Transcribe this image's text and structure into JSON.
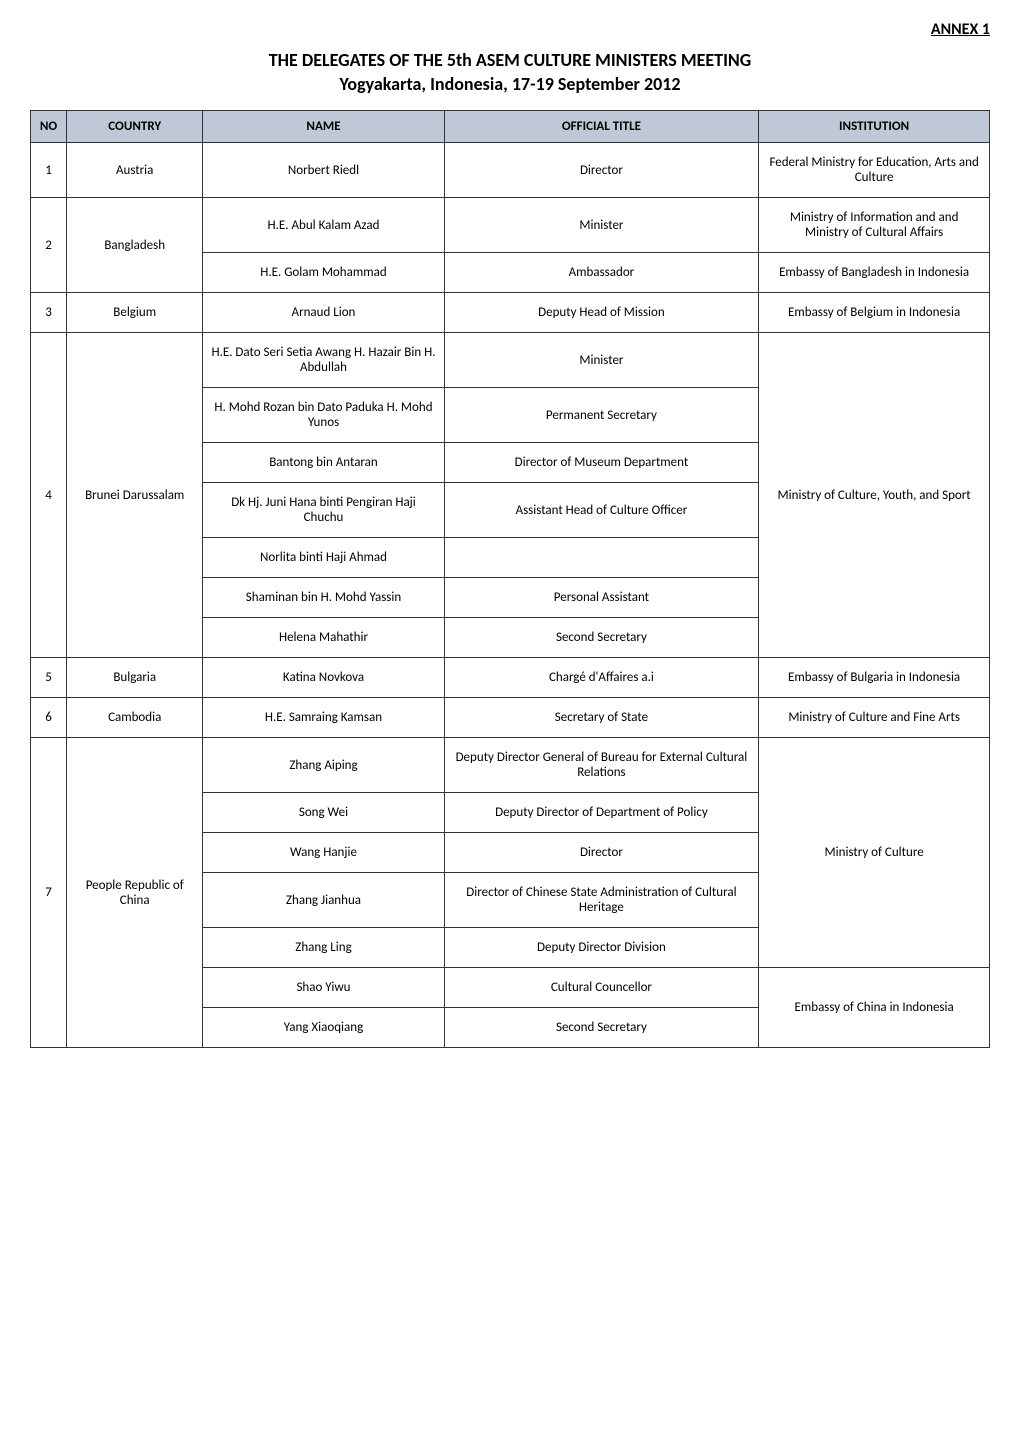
{
  "header": {
    "annex": "ANNEX 1",
    "title_main": "THE DELEGATES OF THE 5th ASEM CULTURE MINISTERS MEETING",
    "title_sub": "Yogyakarta, Indonesia, 17-19 September 2012"
  },
  "table": {
    "columns": {
      "no": "NO",
      "country": "COUNTRY",
      "name": "NAME",
      "title": "OFFICIAL TITLE",
      "institution": "INSTITUTION"
    },
    "header_bg": "#c0c8d8",
    "border_color": "#333333",
    "font_size": 13,
    "cell_padding": 12
  },
  "rows": {
    "r1": {
      "no": "1",
      "country": "Austria",
      "name": "Norbert Riedl",
      "title": "Director",
      "institution": "Federal Ministry for Education, Arts and Culture"
    },
    "r2": {
      "no": "2",
      "country": "Bangladesh",
      "name1": "H.E. Abul Kalam Azad",
      "title1": "Minister",
      "inst1": "Ministry of Information and and Ministry of Cultural Affairs",
      "name2": "H.E. Golam Mohammad",
      "title2": "Ambassador",
      "inst2": "Embassy of Bangladesh in Indonesia"
    },
    "r3": {
      "no": "3",
      "country": "Belgium",
      "name": "Arnaud Lion",
      "title": "Deputy Head of Mission",
      "institution": "Embassy of Belgium in Indonesia"
    },
    "r4": {
      "no": "4",
      "country": "Brunei Darussalam",
      "name1": "H.E. Dato Seri Setia Awang H. Hazair Bin H. Abdullah",
      "title1": "Minister",
      "name2": "H. Mohd Rozan bin Dato Paduka H. Mohd Yunos",
      "title2": "Permanent Secretary",
      "name3": "Bantong bin Antaran",
      "title3": "Director of Museum Department",
      "name4": "Dk Hj. Juni Hana binti Pengiran Haji Chuchu",
      "title4": "Assistant Head of Culture Officer",
      "name5": "Norlita binti Haji Ahmad",
      "title5": "",
      "name6": "Shaminan bin H. Mohd Yassin",
      "title6": "Personal Assistant",
      "name7": "Helena Mahathir",
      "title7": "Second Secretary",
      "institution": "Ministry of Culture, Youth, and Sport"
    },
    "r5": {
      "no": "5",
      "country": "Bulgaria",
      "name": "Katina Novkova",
      "title": "Chargé d'Affaires a.i",
      "institution": "Embassy of Bulgaria in Indonesia"
    },
    "r6": {
      "no": "6",
      "country": "Cambodia",
      "name": "H.E. Samraing Kamsan",
      "title": "Secretary of State",
      "institution": "Ministry of Culture and Fine Arts"
    },
    "r7": {
      "no": "7",
      "country": "People Republic of China",
      "name1": "Zhang Aiping",
      "title1": "Deputy Director General of Bureau for External Cultural Relations",
      "name2": "Song Wei",
      "title2": "Deputy Director of Department of Policy",
      "name3": "Wang Hanjie",
      "title3": "Director",
      "name4": "Zhang Jianhua",
      "title4": "Director of Chinese State Administration of Cultural Heritage",
      "name5": "Zhang Ling",
      "title5": "Deputy Director Division",
      "inst1": "Ministry of Culture",
      "name6": "Shao Yiwu",
      "title6": "Cultural Councellor",
      "name7": "Yang Xiaoqiang",
      "title7": "Second Secretary",
      "inst2": "Embassy of China in Indonesia"
    }
  }
}
